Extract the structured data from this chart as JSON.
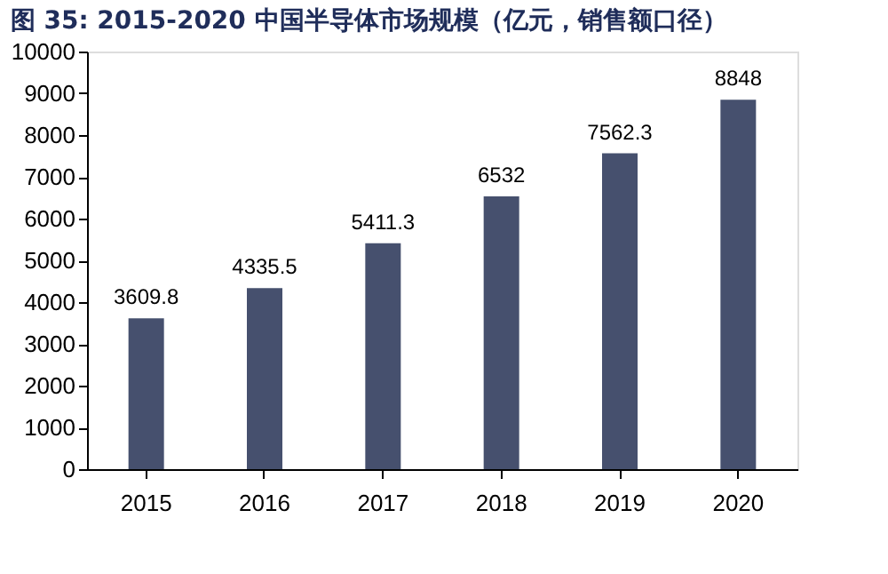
{
  "chart_data": {
    "type": "bar",
    "title": "图 35: 2015-2020 中国半导体市场规模（亿元，销售额口径）",
    "categories": [
      "2015",
      "2016",
      "2017",
      "2018",
      "2019",
      "2020"
    ],
    "values": [
      3609.8,
      4335.5,
      5411.3,
      6532,
      7562.3,
      8848
    ],
    "color": "#46506e",
    "ylim": [
      0,
      10000
    ],
    "yticks": [
      0,
      1000,
      2000,
      3000,
      4000,
      5000,
      6000,
      7000,
      8000,
      9000,
      10000
    ],
    "grid": false,
    "data_labels": true
  }
}
